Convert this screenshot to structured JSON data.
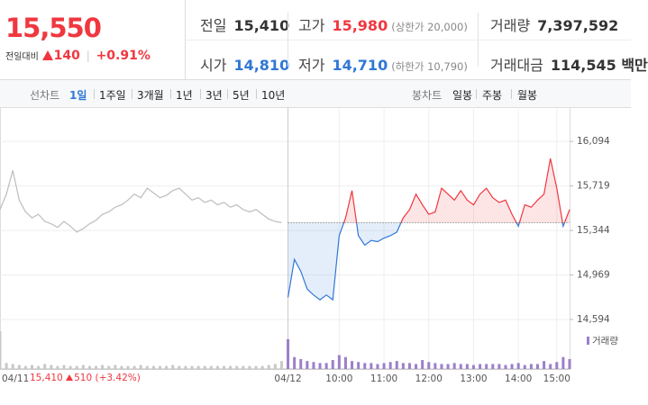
{
  "header": {
    "price": "15,550",
    "change_label": "전일대비",
    "change": "140",
    "change_pct": "+0.91%",
    "stats": [
      [
        {
          "label": "전일",
          "value": "15,410"
        },
        {
          "label": "고가",
          "value": "15,980",
          "note": "(상한가 20,000)"
        },
        {
          "label": "거래량",
          "value": "7,397,592"
        }
      ],
      [
        {
          "label": "시가",
          "value": "14,810"
        },
        {
          "label": "저가",
          "value": "14,710",
          "note": "(하한가 10,790)"
        },
        {
          "label": "거래대금",
          "value": "114,545 백만"
        }
      ]
    ]
  },
  "tabs": {
    "line_label": "선차트",
    "periods": [
      "1일",
      "1주일",
      "3개월",
      "1년",
      "3년",
      "5년",
      "10년"
    ],
    "selected": 0,
    "candle_label": "봉차트",
    "candles": [
      "일봉",
      "주봉",
      "월봉"
    ]
  },
  "info": {
    "close": "15,410",
    "change": "510",
    "change_pct": "(+3.42%)"
  },
  "chart_data": {
    "type": "line",
    "categories": [
      "04/11",
      null,
      null,
      null,
      null,
      null,
      null,
      null,
      null,
      null,
      null,
      null,
      null,
      null,
      null,
      null,
      null,
      null,
      null,
      null,
      null,
      null,
      null,
      null,
      null,
      null,
      null,
      null,
      null,
      null,
      null,
      null,
      null,
      null,
      null,
      null,
      null,
      null,
      null,
      null,
      null,
      null,
      null,
      null,
      null,
      "04/12",
      null,
      null,
      null,
      null,
      null,
      null,
      null,
      "10:00",
      null,
      null,
      null,
      null,
      null,
      null,
      "11:00",
      null,
      null,
      null,
      null,
      null,
      null,
      "12:00",
      null,
      null,
      null,
      null,
      null,
      null,
      "13:00",
      null,
      null,
      null,
      null,
      null,
      null,
      "14:00",
      null,
      null,
      null,
      null,
      null,
      "15:00",
      null,
      null
    ],
    "series": [
      {
        "color": "#bdbdbd",
        "values": [
          15520,
          15650,
          15850,
          15600,
          15500,
          15450,
          15480,
          15420,
          15400,
          15370,
          15420,
          15380,
          15330,
          15360,
          15400,
          15430,
          15480,
          15500,
          15540,
          15560,
          15600,
          15650,
          15620,
          15700,
          15660,
          15620,
          15640,
          15680,
          15700,
          15650,
          15600,
          15620,
          15580,
          15600,
          15560,
          15580,
          15540,
          15560,
          15520,
          15500,
          15520,
          15480,
          15440,
          15420,
          15410,
          null,
          null,
          null,
          null,
          null,
          null,
          null,
          null,
          null,
          null,
          null,
          null,
          null,
          null,
          null,
          null,
          null,
          null,
          null,
          null,
          null,
          null,
          null,
          null,
          null,
          null,
          null,
          null,
          null,
          null,
          null,
          null,
          null,
          null,
          null,
          null,
          null,
          null,
          null,
          null,
          null,
          null,
          null,
          null,
          null
        ]
      },
      {
        "color": "#f0373f",
        "color_below": "#2f77d6",
        "values": [
          null,
          null,
          null,
          null,
          null,
          null,
          null,
          null,
          null,
          null,
          null,
          null,
          null,
          null,
          null,
          null,
          null,
          null,
          null,
          null,
          null,
          null,
          null,
          null,
          null,
          null,
          null,
          null,
          null,
          null,
          null,
          null,
          null,
          null,
          null,
          null,
          null,
          null,
          null,
          null,
          null,
          null,
          null,
          null,
          null,
          14780,
          15100,
          15000,
          14850,
          14800,
          14760,
          14800,
          14760,
          15300,
          15450,
          15680,
          15300,
          15220,
          15260,
          15250,
          15280,
          15300,
          15330,
          15450,
          15520,
          15650,
          15560,
          15480,
          15500,
          15700,
          15650,
          15600,
          15680,
          15600,
          15560,
          15650,
          15700,
          15620,
          15580,
          15600,
          15480,
          15380,
          15560,
          15540,
          15600,
          15650,
          15950,
          15700,
          15380,
          15520
        ]
      }
    ],
    "baseline": 15410,
    "ylim": [
      14518,
      16300
    ],
    "yticks": [
      {
        "value": 14594,
        "label": "14,594"
      },
      {
        "value": 14969,
        "label": "14,969"
      },
      {
        "value": 15344,
        "label": "15,344"
      },
      {
        "value": 15719,
        "label": "15,719"
      },
      {
        "value": 16094,
        "label": "16,094"
      }
    ],
    "grid": true,
    "volume": {
      "name": "거래량",
      "color": "#9c7fc9",
      "color_prev": "#c8c8c8",
      "values": [
        38,
        6,
        5,
        4,
        3,
        4,
        3,
        5,
        4,
        3,
        4,
        3,
        3,
        4,
        3,
        3,
        4,
        3,
        4,
        3,
        3,
        3,
        4,
        3,
        3,
        3,
        3,
        4,
        3,
        3,
        3,
        3,
        3,
        3,
        3,
        3,
        3,
        3,
        3,
        3,
        3,
        3,
        4,
        5,
        8,
        30,
        12,
        10,
        8,
        7,
        6,
        6,
        9,
        14,
        12,
        8,
        7,
        6,
        6,
        5,
        6,
        7,
        8,
        6,
        6,
        5,
        9,
        7,
        6,
        5,
        5,
        6,
        5,
        5,
        4,
        5,
        5,
        5,
        5,
        4,
        5,
        6,
        4,
        5,
        5,
        8,
        5,
        7,
        12,
        10
      ]
    }
  }
}
